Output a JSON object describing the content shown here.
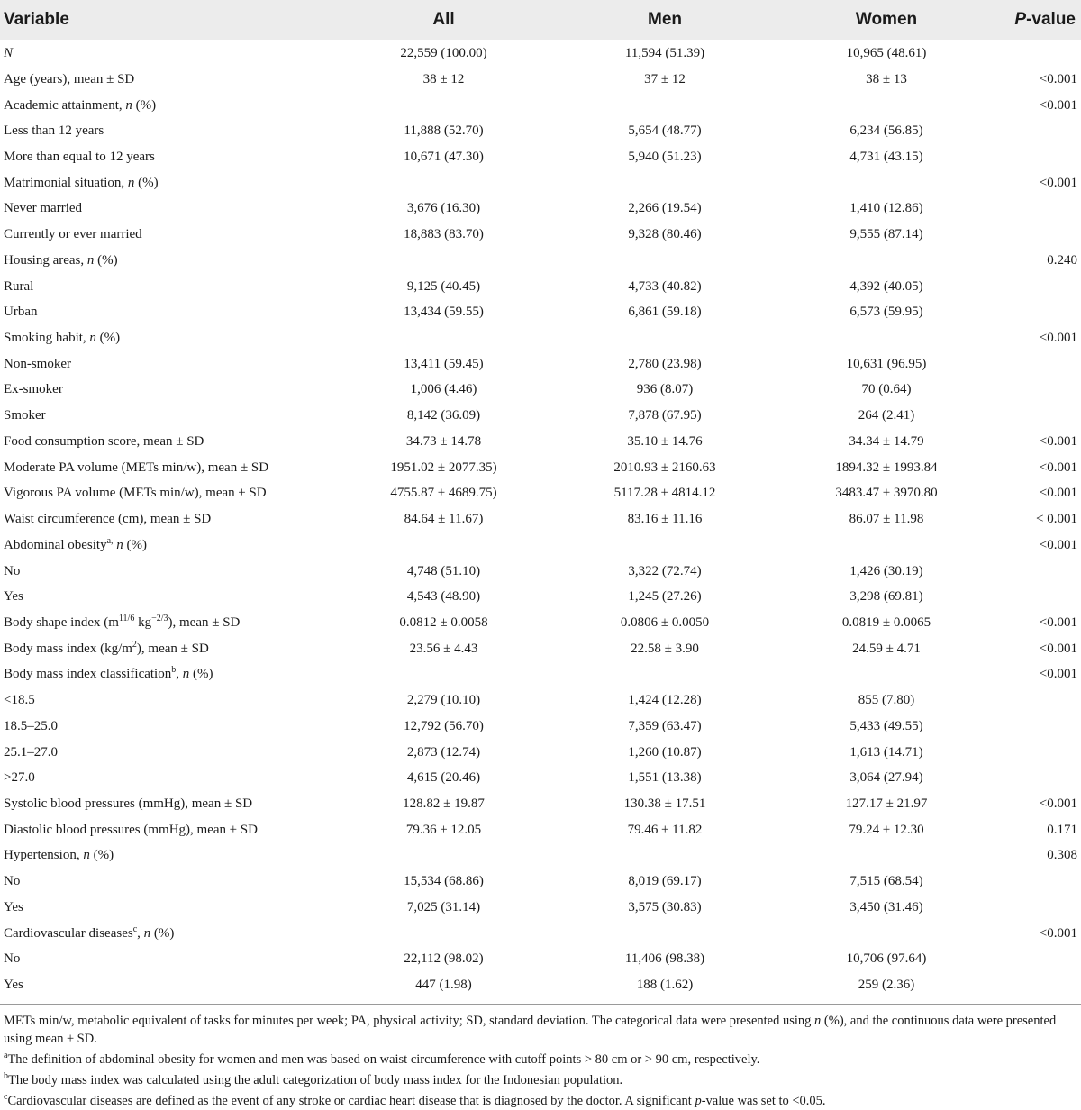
{
  "header": {
    "variable": "Variable",
    "all": "All",
    "men": "Men",
    "women": "Women",
    "pvalue_p": "P",
    "pvalue_rest": "-value"
  },
  "rows": [
    {
      "label": "N",
      "italic_label": true,
      "all": "22,559 (100.00)",
      "men": "11,594 (51.39)",
      "women": "10,965 (48.61)",
      "p": ""
    },
    {
      "label": "Age (years), mean ± SD",
      "all": "38 ± 12",
      "men": "37 ± 12",
      "women": "38 ± 13",
      "p": "<0.001"
    },
    {
      "label": "Academic attainment, ",
      "n_pct": "n",
      "suffix": " (%)",
      "all": "",
      "men": "",
      "women": "",
      "p": "<0.001"
    },
    {
      "label": "Less than 12 years",
      "all": "11,888 (52.70)",
      "men": "5,654 (48.77)",
      "women": "6,234 (56.85)",
      "p": ""
    },
    {
      "label": "More than equal to 12 years",
      "all": "10,671 (47.30)",
      "men": "5,940 (51.23)",
      "women": "4,731 (43.15)",
      "p": ""
    },
    {
      "label": "Matrimonial situation, ",
      "n_pct": "n",
      "suffix": " (%)",
      "all": "",
      "men": "",
      "women": "",
      "p": "<0.001"
    },
    {
      "label": "Never married",
      "all": "3,676 (16.30)",
      "men": "2,266 (19.54)",
      "women": "1,410 (12.86)",
      "p": ""
    },
    {
      "label": "Currently or ever married",
      "all": "18,883 (83.70)",
      "men": "9,328 (80.46)",
      "women": "9,555 (87.14)",
      "p": ""
    },
    {
      "label": "Housing areas, ",
      "n_pct": "n",
      "suffix": " (%)",
      "all": "",
      "men": "",
      "women": "",
      "p": "0.240"
    },
    {
      "label": "Rural",
      "all": "9,125 (40.45)",
      "men": "4,733 (40.82)",
      "women": "4,392 (40.05)",
      "p": ""
    },
    {
      "label": "Urban",
      "all": "13,434 (59.55)",
      "men": "6,861 (59.18)",
      "women": "6,573 (59.95)",
      "p": ""
    },
    {
      "label": "Smoking habit, ",
      "n_pct": "n",
      "suffix": " (%)",
      "all": "",
      "men": "",
      "women": "",
      "p": "<0.001"
    },
    {
      "label": "Non-smoker",
      "all": "13,411 (59.45)",
      "men": "2,780 (23.98)",
      "women": "10,631 (96.95)",
      "p": ""
    },
    {
      "label": "Ex-smoker",
      "all": "1,006 (4.46)",
      "men": "936 (8.07)",
      "women": "70 (0.64)",
      "p": ""
    },
    {
      "label": "Smoker",
      "all": "8,142 (36.09)",
      "men": "7,878 (67.95)",
      "women": "264 (2.41)",
      "p": ""
    },
    {
      "label": "Food consumption score, mean ± SD",
      "all": "34.73 ± 14.78",
      "men": "35.10 ± 14.76",
      "women": "34.34 ± 14.79",
      "p": "<0.001"
    },
    {
      "label": "Moderate PA volume (METs min/w), mean ± SD",
      "all": "1951.02 ± 2077.35)",
      "men": "2010.93 ± 2160.63",
      "women": "1894.32 ± 1993.84",
      "p": "<0.001"
    },
    {
      "label": "Vigorous PA volume (METs min/w), mean ± SD",
      "all": "4755.87 ± 4689.75)",
      "men": "5117.28 ± 4814.12",
      "women": "3483.47 ± 3970.80",
      "p": "<0.001"
    },
    {
      "label": "Waist circumference (cm), mean ± SD",
      "all": "84.64 ± 11.67)",
      "men": "83.16 ± 11.16",
      "women": "86.07 ± 11.98",
      "p": "< 0.001"
    },
    {
      "label": "Abdominal obesity",
      "sup": "a,",
      "n_pct": "n",
      "suffix": " (%)",
      "sep": " ",
      "all": "",
      "men": "",
      "women": "",
      "p": "<0.001"
    },
    {
      "label": "No",
      "all": "4,748 (51.10)",
      "men": "3,322 (72.74)",
      "women": "1,426 (30.19)",
      "p": ""
    },
    {
      "label": "Yes",
      "all": "4,543 (48.90)",
      "men": "1,245 (27.26)",
      "women": "3,298 (69.81)",
      "p": ""
    },
    {
      "label": "Body shape index (m",
      "sup": "11/6",
      "mid": " kg",
      "sup2": "−2/3",
      "suffix2": "), mean ± SD",
      "all": "0.0812 ± 0.0058",
      "men": "0.0806 ± 0.0050",
      "women": "0.0819 ± 0.0065",
      "p": "<0.001"
    },
    {
      "label": "Body mass index (kg/m",
      "sup": "2",
      "suffix2": "), mean ± SD",
      "all": "23.56 ± 4.43",
      "men": "22.58 ± 3.90",
      "women": "24.59 ± 4.71",
      "p": "<0.001"
    },
    {
      "label": "Body mass index classification",
      "sup": "b",
      "n_pct": "n",
      "suffix": " (%)",
      "sep": ", ",
      "all": "",
      "men": "",
      "women": "",
      "p": "<0.001"
    },
    {
      "label": "<18.5",
      "all": "2,279 (10.10)",
      "men": "1,424 (12.28)",
      "women": "855 (7.80)",
      "p": ""
    },
    {
      "label": "18.5–25.0",
      "all": "12,792 (56.70)",
      "men": "7,359 (63.47)",
      "women": "5,433 (49.55)",
      "p": ""
    },
    {
      "label": "25.1–27.0",
      "all": "2,873 (12.74)",
      "men": "1,260 (10.87)",
      "women": "1,613 (14.71)",
      "p": ""
    },
    {
      "label": ">27.0",
      "all": "4,615 (20.46)",
      "men": "1,551 (13.38)",
      "women": "3,064 (27.94)",
      "p": ""
    },
    {
      "label": "Systolic blood pressures (mmHg), mean ± SD",
      "all": "128.82 ± 19.87",
      "men": "130.38 ± 17.51",
      "women": "127.17 ± 21.97",
      "p": "<0.001"
    },
    {
      "label": "Diastolic blood pressures (mmHg), mean ± SD",
      "all": "79.36 ± 12.05",
      "men": "79.46 ± 11.82",
      "women": "79.24 ± 12.30",
      "p": "0.171"
    },
    {
      "label": "Hypertension, ",
      "n_pct": "n",
      "suffix": " (%)",
      "all": "",
      "men": "",
      "women": "",
      "p": "0.308"
    },
    {
      "label": "No",
      "all": "15,534 (68.86)",
      "men": "8,019 (69.17)",
      "women": "7,515 (68.54)",
      "p": ""
    },
    {
      "label": "Yes",
      "all": "7,025 (31.14)",
      "men": "3,575 (30.83)",
      "women": "3,450 (31.46)",
      "p": ""
    },
    {
      "label": "Cardiovascular diseases",
      "sup": "c",
      "n_pct": "n",
      "suffix": " (%)",
      "sep": ", ",
      "all": "",
      "men": "",
      "women": "",
      "p": "<0.001"
    },
    {
      "label": "No",
      "all": "22,112 (98.02)",
      "men": "11,406 (98.38)",
      "women": "10,706 (97.64)",
      "p": ""
    },
    {
      "label": "Yes",
      "all": "447 (1.98)",
      "men": "188 (1.62)",
      "women": "259 (2.36)",
      "p": ""
    }
  ],
  "notes": {
    "abbrev_1": "METs min/w, metabolic equivalent of tasks for minutes per week; PA, physical activity; SD, standard deviation. The categorical data were presented using ",
    "abbrev_n": "n",
    "abbrev_2": " (%), and the continuous data were presented using mean ± SD.",
    "a_sup": "a",
    "a_text": "The definition of abdominal obesity for women and men was based on waist circumference with cutoff points > 80 cm or > 90 cm, respectively.",
    "b_sup": "b",
    "b_text": "The body mass index was calculated using the adult categorization of body mass index for the Indonesian population.",
    "c_sup": "c",
    "c_text_1": "Cardiovascular diseases are defined as the event of any stroke or cardiac heart disease that is diagnosed by the doctor. A significant ",
    "c_p": "p",
    "c_text_2": "-value was set to <0.05."
  }
}
